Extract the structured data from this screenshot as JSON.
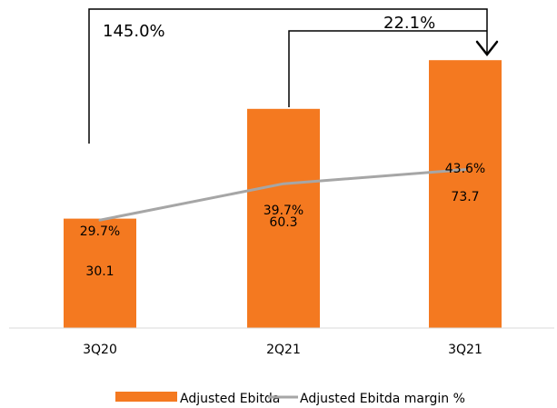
{
  "chart_data": {
    "type": "bar",
    "title": "",
    "xlabel": "",
    "ylabel": "",
    "categories": [
      "3Q20",
      "2Q21",
      "3Q21"
    ],
    "ylim": [
      0,
      80
    ],
    "grid": false,
    "legend_position": "bottom",
    "series": [
      {
        "name": "Adjusted Ebitda",
        "type": "bar",
        "color": "#f47920",
        "values": [
          30.1,
          60.3,
          73.7
        ],
        "value_labels": [
          "30.1",
          "60.3",
          "73.7"
        ]
      },
      {
        "name": "Adjusted Ebitda margin %",
        "type": "line",
        "color": "#a6a6a6",
        "values": [
          29.7,
          39.7,
          43.6
        ],
        "value_labels": [
          "29.7%",
          "39.7%",
          "43.6%"
        ],
        "ylim": [
          0,
          80
        ]
      }
    ],
    "annotations": [
      {
        "text": "145.0%",
        "from": "3Q20",
        "to": "3Q21"
      },
      {
        "text": "22.1%",
        "from": "2Q21",
        "to": "3Q21"
      }
    ]
  }
}
